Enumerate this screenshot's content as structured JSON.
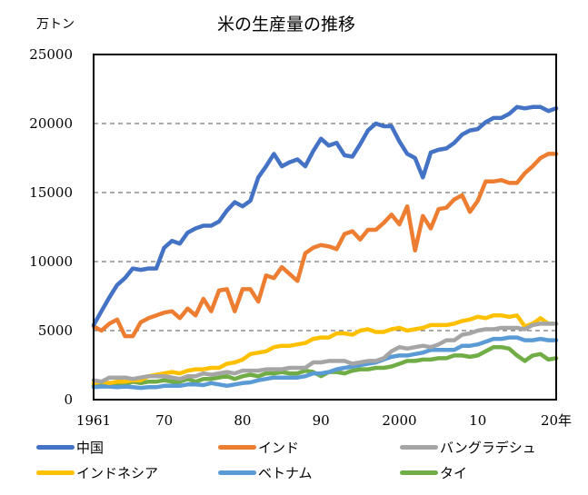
{
  "chart_data": {
    "type": "line",
    "title": "米の生産量の推移",
    "ylabel": "万トン",
    "xlabel": "",
    "ylim": [
      0,
      25000
    ],
    "xlim": [
      1961,
      2020
    ],
    "grid": "horizontal-dashed",
    "legend_position": "bottom",
    "yticks": [
      "0",
      "5000",
      "10000",
      "15000",
      "20000",
      "25000"
    ],
    "ytick_values": [
      0,
      5000,
      10000,
      15000,
      20000,
      25000
    ],
    "xticks": [
      "1961",
      "70",
      "80",
      "90",
      "2000",
      "10",
      "20年"
    ],
    "xtick_values": [
      1961,
      1970,
      1980,
      1990,
      2000,
      2010,
      2020
    ],
    "x": [
      1961,
      1962,
      1963,
      1964,
      1965,
      1966,
      1967,
      1968,
      1969,
      1970,
      1971,
      1972,
      1973,
      1974,
      1975,
      1976,
      1977,
      1978,
      1979,
      1980,
      1981,
      1982,
      1983,
      1984,
      1985,
      1986,
      1987,
      1988,
      1989,
      1990,
      1991,
      1992,
      1993,
      1994,
      1995,
      1996,
      1997,
      1998,
      1999,
      2000,
      2001,
      2002,
      2003,
      2004,
      2005,
      2006,
      2007,
      2008,
      2009,
      2010,
      2011,
      2012,
      2013,
      2014,
      2015,
      2016,
      2017,
      2018,
      2019,
      2020
    ],
    "series": [
      {
        "name": "中国",
        "color": "#4472C4",
        "values": [
          5400,
          6400,
          7400,
          8300,
          8800,
          9500,
          9400,
          9500,
          9500,
          11000,
          11500,
          11300,
          12100,
          12400,
          12600,
          12600,
          12900,
          13700,
          14300,
          14000,
          14400,
          16100,
          16900,
          17800,
          16900,
          17200,
          17400,
          16900,
          18000,
          18900,
          18400,
          18600,
          17700,
          17600,
          18500,
          19500,
          20000,
          19800,
          19800,
          18700,
          17800,
          17500,
          16100,
          17900,
          18100,
          18200,
          18600,
          19200,
          19500,
          19600,
          20100,
          20400,
          20400,
          20700,
          21200,
          21100,
          21200,
          21200,
          20900,
          21100
        ]
      },
      {
        "name": "インド",
        "color": "#ED7D31",
        "values": [
          5300,
          5000,
          5500,
          5800,
          4600,
          4600,
          5600,
          5900,
          6100,
          6300,
          6400,
          5900,
          6600,
          6100,
          7300,
          6400,
          7900,
          8000,
          6400,
          8000,
          8000,
          7100,
          9000,
          8800,
          9600,
          9100,
          8600,
          10600,
          11000,
          11200,
          11100,
          10900,
          12000,
          12200,
          11600,
          12300,
          12300,
          12800,
          13400,
          12700,
          14000,
          10800,
          13300,
          12400,
          13800,
          13900,
          14500,
          14800,
          13600,
          14400,
          15800,
          15800,
          15900,
          15700,
          15700,
          16400,
          16900,
          17500,
          17800,
          17800
        ]
      },
      {
        "name": "バングラデシュ",
        "color": "#A5A5A5",
        "values": [
          1400,
          1300,
          1600,
          1600,
          1600,
          1500,
          1600,
          1700,
          1700,
          1700,
          1600,
          1500,
          1700,
          1700,
          1900,
          1800,
          1900,
          2000,
          1900,
          2100,
          2100,
          2100,
          2200,
          2200,
          2200,
          2300,
          2300,
          2300,
          2700,
          2700,
          2800,
          2800,
          2800,
          2600,
          2700,
          2800,
          2800,
          3000,
          3500,
          3800,
          3700,
          3800,
          3900,
          3800,
          4000,
          4300,
          4300,
          4700,
          4800,
          5000,
          5100,
          5100,
          5200,
          5200,
          5200,
          5100,
          5400,
          5500,
          5500,
          5500
        ]
      },
      {
        "name": "インドネシア",
        "color": "#FFC000",
        "values": [
          1200,
          1300,
          1200,
          1300,
          1300,
          1400,
          1400,
          1700,
          1800,
          1900,
          2000,
          1900,
          2100,
          2200,
          2200,
          2300,
          2300,
          2600,
          2700,
          2900,
          3300,
          3400,
          3500,
          3800,
          3900,
          3900,
          4000,
          4100,
          4400,
          4500,
          4500,
          4800,
          4800,
          4700,
          5000,
          5100,
          4900,
          4900,
          5100,
          5200,
          5000,
          5100,
          5200,
          5400,
          5400,
          5400,
          5500,
          5700,
          5800,
          6000,
          5900,
          6100,
          6100,
          6000,
          6100,
          5300,
          5500,
          5900,
          5500,
          5500
        ]
      },
      {
        "name": "ベトナム",
        "color": "#5B9BD5",
        "values": [
          900,
          950,
          950,
          900,
          950,
          900,
          850,
          900,
          900,
          1000,
          1000,
          1000,
          1100,
          1100,
          1050,
          1200,
          1100,
          1000,
          1100,
          1200,
          1250,
          1400,
          1500,
          1600,
          1600,
          1600,
          1600,
          1700,
          1900,
          1900,
          2000,
          2200,
          2300,
          2400,
          2500,
          2600,
          2700,
          2900,
          3100,
          3200,
          3200,
          3300,
          3400,
          3600,
          3600,
          3600,
          3600,
          3900,
          3900,
          4000,
          4200,
          4400,
          4400,
          4500,
          4500,
          4300,
          4300,
          4400,
          4300,
          4300
        ]
      },
      {
        "name": "タイ",
        "color": "#70AD47",
        "values": [
          1000,
          1100,
          1200,
          1100,
          1100,
          1300,
          1200,
          1300,
          1300,
          1400,
          1300,
          1300,
          1500,
          1300,
          1500,
          1500,
          1600,
          1700,
          1500,
          1700,
          1800,
          1700,
          1900,
          1900,
          2000,
          1900,
          1900,
          2100,
          2000,
          1700,
          2000,
          2000,
          1900,
          2100,
          2200,
          2200,
          2300,
          2300,
          2400,
          2600,
          2800,
          2800,
          2900,
          2900,
          3000,
          3000,
          3200,
          3200,
          3100,
          3200,
          3500,
          3800,
          3800,
          3700,
          3200,
          2800,
          3200,
          3300,
          2900,
          3000
        ]
      }
    ]
  }
}
